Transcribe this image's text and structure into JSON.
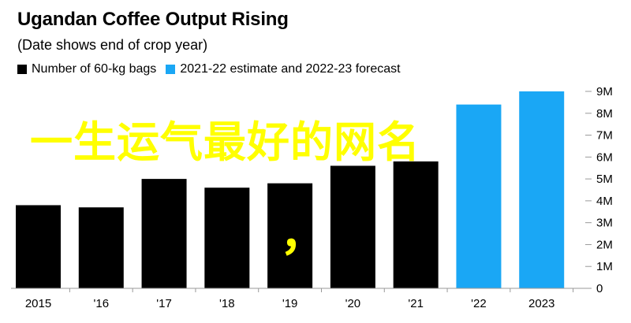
{
  "chart_data": {
    "type": "bar",
    "title": "Ugandan Coffee Output Rising",
    "subtitle": "(Date shows end of crop year)",
    "categories": [
      "2015",
      "'16",
      "'17",
      "'18",
      "'19",
      "'20",
      "'21",
      "'22",
      "2023"
    ],
    "values": [
      3.8,
      3.7,
      5.0,
      4.6,
      4.8,
      5.6,
      5.8,
      8.4,
      9.0
    ],
    "series": [
      {
        "name": "Number of 60-kg bags",
        "color": "#000000",
        "categories": [
          "2015",
          "'16",
          "'17",
          "'18",
          "'19",
          "'20",
          "'21"
        ]
      },
      {
        "name": "2021-22 estimate and 2022-23 forecast",
        "color": "#1aa7f5",
        "categories": [
          "'22",
          "2023"
        ]
      }
    ],
    "xlabel": "",
    "ylabel": "",
    "ylim": [
      0,
      9
    ],
    "yticks": [
      0,
      1,
      2,
      3,
      4,
      5,
      6,
      7,
      8,
      9
    ],
    "ytick_labels": [
      "0",
      "1M",
      "2M",
      "3M",
      "4M",
      "5M",
      "6M",
      "7M",
      "8M",
      "9M"
    ],
    "y_axis_position": "right",
    "legend_position": "top-left",
    "grid": false
  },
  "overlay_text": "一生运气最好的网名",
  "overlay_mark": "，",
  "colors": {
    "bar_primary": "#000000",
    "bar_forecast": "#1aa7f5",
    "overlay": "#ffff00",
    "axis": "#999999"
  }
}
